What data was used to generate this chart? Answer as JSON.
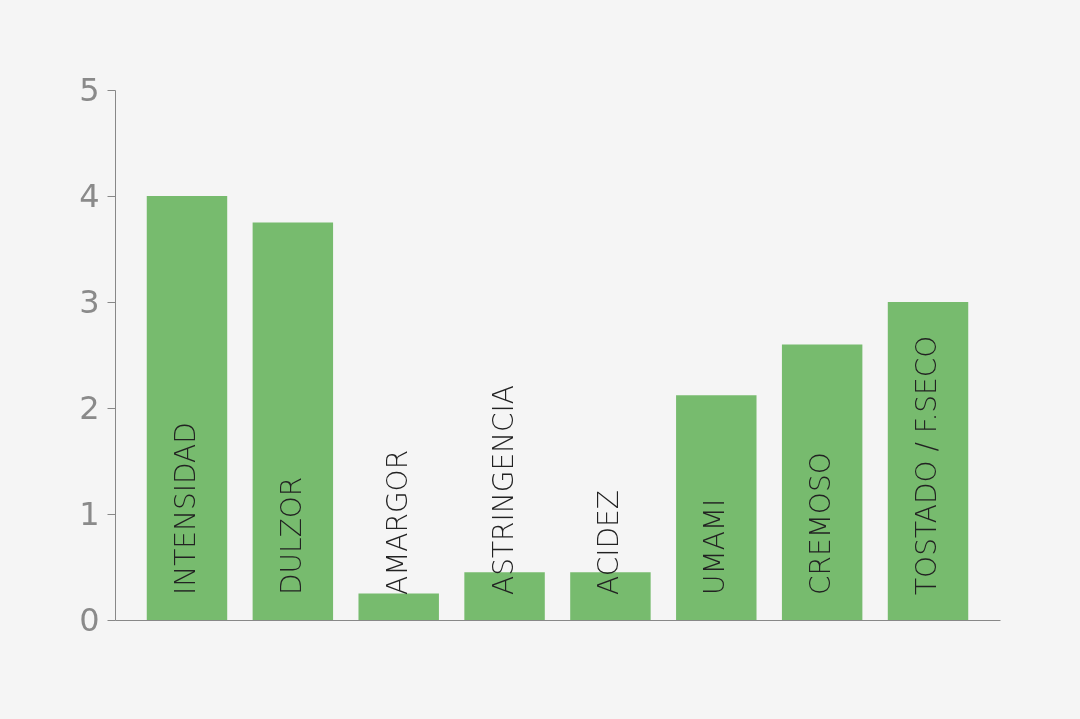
{
  "chart_data": {
    "type": "bar",
    "categories": [
      "INTENSIDAD",
      "DULZOR",
      "AMARGOR",
      "ASTRINGENCIA",
      "ACIDEZ",
      "UMAMI",
      "CREMOSO",
      "TOSTADO / F.SECO"
    ],
    "values": [
      4,
      3.75,
      0.25,
      0.45,
      0.45,
      2.12,
      2.6,
      3
    ],
    "color": "#77bb6e",
    "ylim": [
      0,
      5
    ],
    "yticks": [
      0,
      1,
      2,
      3,
      4,
      5
    ],
    "grid": false,
    "tick_labels": "y"
  }
}
